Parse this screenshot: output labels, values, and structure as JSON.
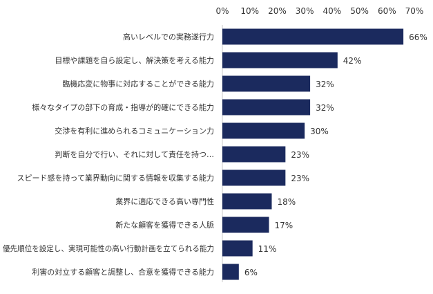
{
  "chart_data": {
    "type": "bar",
    "orientation": "horizontal",
    "categories": [
      "高いレベルでの実務遂行力",
      "目標や課題を自ら設定し、解決策を考える能力",
      "臨機応変に物事に対応することができる能力",
      "様々なタイプの部下の育成・指導が的確にできる能力",
      "交渉を有利に進められるコミュニケーション力",
      "判断を自分で行い、それに対して責任を持つ…",
      "スピード感を持って業界動向に関する情報を収集する能力",
      "業界に適応できる高い専門性",
      "新たな顧客を獲得できる人脈",
      "優先順位を設定し、実現可能性の高い行動計画を立てられる能力",
      "利害の対立する顧客と調整し、合意を獲得できる能力"
    ],
    "values": [
      66,
      42,
      32,
      32,
      30,
      23,
      23,
      18,
      17,
      11,
      6
    ],
    "value_labels": [
      "66%",
      "42%",
      "32%",
      "32%",
      "30%",
      "23%",
      "23%",
      "18%",
      "17%",
      "11%",
      "6%"
    ],
    "xlim": [
      0,
      70
    ],
    "x_ticks": [
      0,
      10,
      20,
      30,
      40,
      50,
      60,
      70
    ],
    "x_tick_labels": [
      "0%",
      "10%",
      "20%",
      "30%",
      "40%",
      "50%",
      "60%",
      "70%"
    ],
    "axis_position": "top",
    "grid": false,
    "legend": "none",
    "title": "",
    "xlabel": "",
    "ylabel": "",
    "bar_color": "#1b2a5e"
  }
}
